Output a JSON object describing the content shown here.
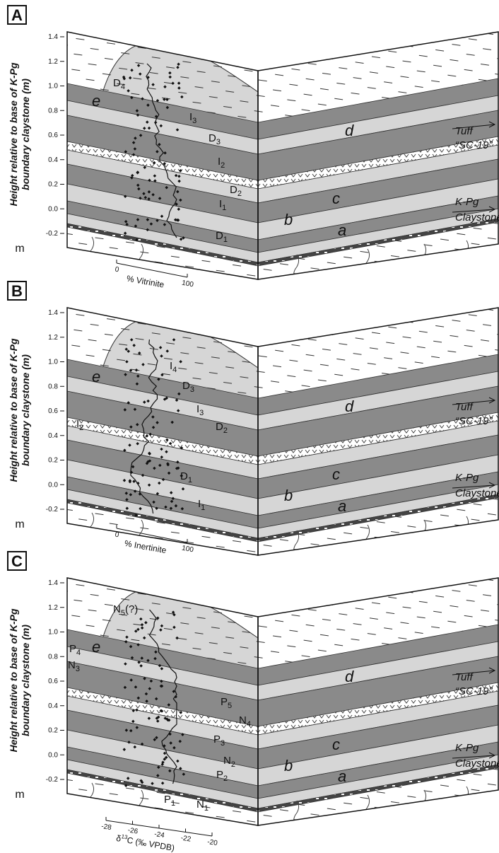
{
  "panels": [
    {
      "label": "A",
      "y_axis_label": [
        "Height relative to base of K-Pg",
        "boundary claystone (m)"
      ],
      "y_ticks": [
        "1.4",
        "1.2",
        "1.0",
        "0.8",
        "0.6",
        "0.4",
        "0.2",
        "0.0",
        "-0.2"
      ],
      "y_unit": "m",
      "units": [
        "e",
        "d",
        "c",
        "b",
        "a"
      ],
      "tuff_label": [
        "Tuff",
        "“SC-19”"
      ],
      "kpg_label": [
        "K-Pg",
        "Claystone"
      ],
      "layers": [
        {
          "letter": "D",
          "index": "4"
        },
        {
          "letter": "I",
          "index": "3"
        },
        {
          "letter": "D",
          "index": "3"
        },
        {
          "letter": "I",
          "index": "2"
        },
        {
          "letter": "D",
          "index": "2"
        },
        {
          "letter": "I",
          "index": "1"
        },
        {
          "letter": "D",
          "index": "1"
        }
      ],
      "x_axis": {
        "label": "% Vitrinite",
        "ticks": [
          "0",
          "100"
        ]
      }
    },
    {
      "label": "B",
      "y_axis_label": [
        "Height relative to base of K-Pg",
        "boundary claystone (m)"
      ],
      "y_ticks": [
        "1.4",
        "1.2",
        "1.0",
        "0.8",
        "0.6",
        "0.4",
        "0.2",
        "0.0",
        "-0.2"
      ],
      "y_unit": "m",
      "units": [
        "e",
        "d",
        "c",
        "b",
        "a"
      ],
      "tuff_label": [
        "Tuff",
        "“SC-19”"
      ],
      "kpg_label": [
        "K-Pg",
        "Claystone"
      ],
      "layers": [
        {
          "letter": "I",
          "index": "4"
        },
        {
          "letter": "D",
          "index": "3"
        },
        {
          "letter": "I",
          "index": "3"
        },
        {
          "letter": "D",
          "index": "2"
        },
        {
          "letter": "I",
          "index": "2"
        },
        {
          "letter": "D",
          "index": "1"
        },
        {
          "letter": "I",
          "index": "1"
        }
      ],
      "x_axis": {
        "label": "% Inertinite",
        "ticks": [
          "0",
          "100"
        ]
      }
    },
    {
      "label": "C",
      "y_axis_label": [
        "Height relative to base of K-Pg",
        "boundary claystone (m)"
      ],
      "y_ticks": [
        "1.4",
        "1.2",
        "1.0",
        "0.8",
        "0.6",
        "0.4",
        "0.2",
        "0.0",
        "-0.2"
      ],
      "y_unit": "m",
      "units": [
        "e",
        "d",
        "c",
        "b",
        "a"
      ],
      "tuff_label": [
        "Tuff",
        "“SC-19”"
      ],
      "kpg_label": [
        "K-Pg",
        "Claystone"
      ],
      "layers": [
        {
          "letter": "N",
          "index": "5",
          "suffix": "(?)"
        },
        {
          "letter": "P",
          "index": "4"
        },
        {
          "letter": "N",
          "index": "3"
        },
        {
          "letter": "P",
          "index": "5"
        },
        {
          "letter": "N",
          "index": "4"
        },
        {
          "letter": "P",
          "index": "3"
        },
        {
          "letter": "N",
          "index": "2"
        },
        {
          "letter": "P",
          "index": "2"
        },
        {
          "letter": "P",
          "index": "1"
        },
        {
          "letter": "N",
          "index": "1"
        }
      ],
      "x_axis": {
        "label": {
          "pre": "δ",
          "sup": "13",
          "post": "C (‰ VPDB)"
        },
        "ticks": [
          "-28",
          "-26",
          "-24",
          "-22",
          "-20"
        ]
      }
    }
  ]
}
